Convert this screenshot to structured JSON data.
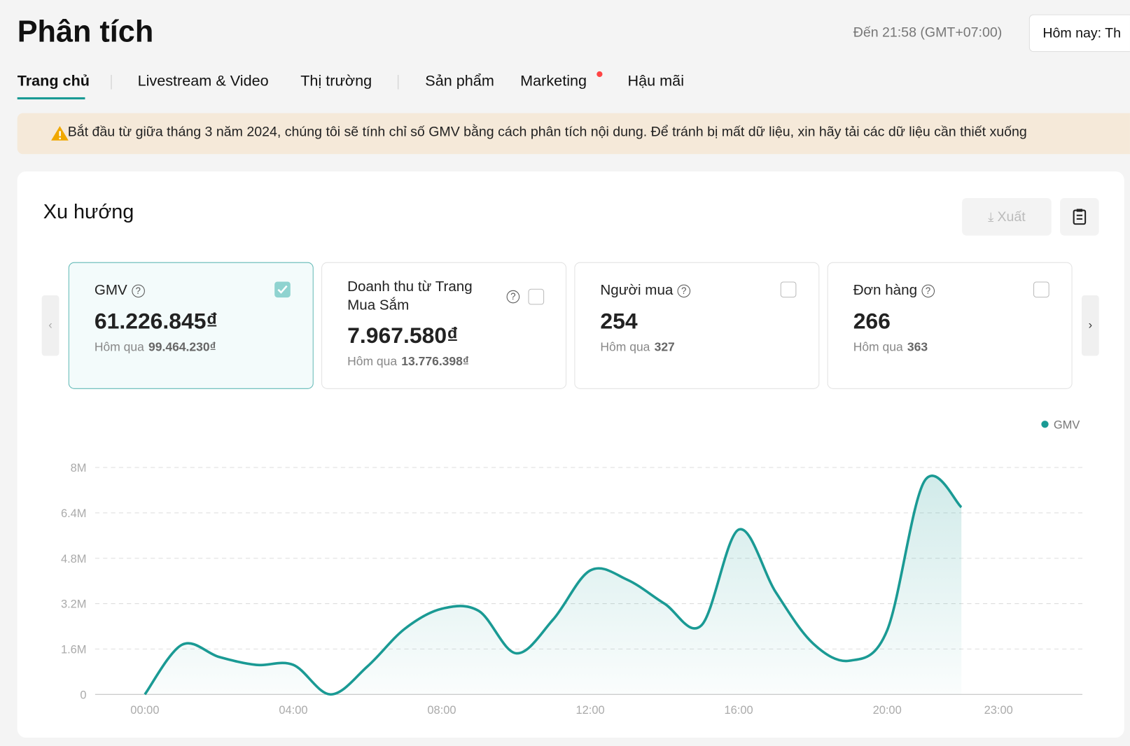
{
  "header": {
    "title": "Phân tích",
    "time": "Đến 21:58 (GMT+07:00)",
    "date_picker": "Hôm nay: Th"
  },
  "tabs": [
    "Trang chủ",
    "Livestream & Video",
    "Thị trường",
    "Sản phẩm",
    "Marketing",
    "Hậu mãi"
  ],
  "banner": "Bắt đầu từ giữa tháng 3 năm 2024, chúng tôi sẽ tính chỉ số GMV bằng cách phân tích nội dung. Để tránh bị mất dữ liệu, xin hãy tải các dữ liệu cần thiết xuống",
  "section": {
    "title": "Xu hướng",
    "export": "Xuất"
  },
  "cards": [
    {
      "label": "GMV",
      "value": "61.226.845₫",
      "prev_label": "Hôm qua",
      "prev": "99.464.230₫"
    },
    {
      "label": "Doanh thu từ Trang Mua Sắm",
      "value": "7.967.580₫",
      "prev_label": "Hôm qua",
      "prev": "13.776.398₫"
    },
    {
      "label": "Người mua",
      "value": "254",
      "prev_label": "Hôm qua",
      "prev": "327"
    },
    {
      "label": "Đơn hàng",
      "value": "266",
      "prev_label": "Hôm qua",
      "prev": "363"
    }
  ],
  "chart_data": {
    "type": "line",
    "x": [
      0,
      1,
      2,
      3,
      4,
      5,
      6,
      7,
      8,
      9,
      10,
      11,
      12,
      13,
      14,
      15,
      16,
      17,
      18,
      19,
      20,
      21,
      22
    ],
    "series": [
      {
        "name": "GMV",
        "color": "#1a9a94",
        "values": [
          0,
          1750000,
          1320000,
          1040000,
          1040000,
          0,
          990000,
          2310000,
          3020000,
          2940000,
          1450000,
          2640000,
          4370000,
          4040000,
          3200000,
          2440000,
          5810000,
          3600000,
          1800000,
          1190000,
          2260000,
          7510000,
          6600000
        ]
      }
    ],
    "xlim": [
      -1.34,
      25.26
    ],
    "xticks": [
      {
        "value": 0,
        "label": "00:00"
      },
      {
        "value": 4,
        "label": "04:00"
      },
      {
        "value": 8,
        "label": "08:00"
      },
      {
        "value": 12,
        "label": "12:00"
      },
      {
        "value": 16,
        "label": "16:00"
      },
      {
        "value": 20,
        "label": "20:00"
      },
      {
        "value": 23,
        "label": "23:00"
      }
    ],
    "ylim": [
      0,
      8000000
    ],
    "yticks": [
      0,
      {
        "value": 1600000,
        "label": "1.6M"
      },
      {
        "value": 3200000,
        "label": "3.2M"
      },
      {
        "value": 4800000,
        "label": "4.8M"
      },
      {
        "value": 6400000,
        "label": "6.4M"
      },
      {
        "value": 8000000,
        "label": "8M"
      }
    ],
    "grid": true,
    "legend": "top-right"
  }
}
